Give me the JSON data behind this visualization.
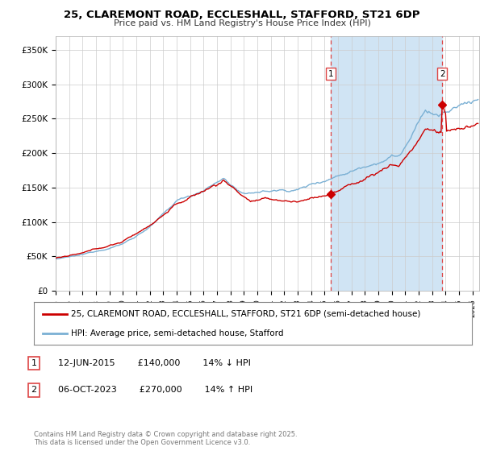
{
  "title_line1": "25, CLAREMONT ROAD, ECCLESHALL, STAFFORD, ST21 6DP",
  "title_line2": "Price paid vs. HM Land Registry's House Price Index (HPI)",
  "background_color": "#ffffff",
  "grid_color": "#cccccc",
  "plot_bg_color": "#eef4fb",
  "sale1_date_num": 2015.44,
  "sale1_price": 140000,
  "sale2_date_num": 2023.76,
  "sale2_price": 270000,
  "legend_entry1": "25, CLAREMONT ROAD, ECCLESHALL, STAFFORD, ST21 6DP (semi-detached house)",
  "legend_entry2": "HPI: Average price, semi-detached house, Stafford",
  "footnote1_text": "12-JUN-2015        £140,000        14% ↓ HPI",
  "footnote2_text": "06-OCT-2023        £270,000        14% ↑ HPI",
  "copyright_text": "Contains HM Land Registry data © Crown copyright and database right 2025.\nThis data is licensed under the Open Government Licence v3.0.",
  "line_color_price": "#cc0000",
  "line_color_hpi": "#7ab0d4",
  "dashed_color": "#dd4444",
  "shade_color": "#d0e4f4",
  "ylim": [
    0,
    370000
  ],
  "xlim": [
    1995,
    2026.5
  ]
}
